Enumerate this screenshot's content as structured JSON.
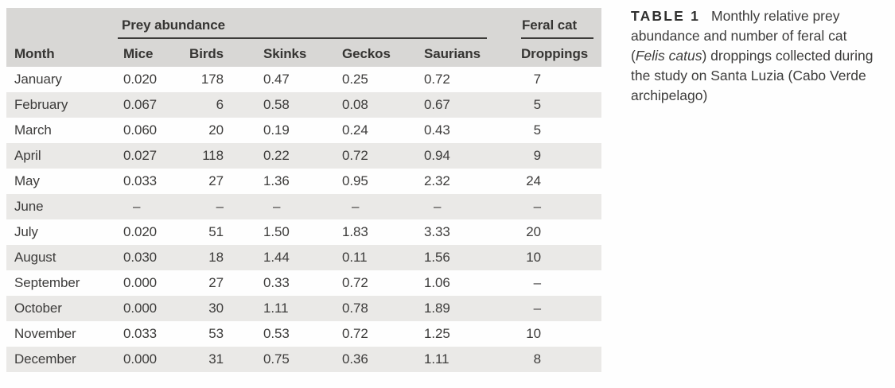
{
  "colors": {
    "header_bg": "#d8d7d5",
    "stripe_bg": "#eae9e7",
    "text": "#3d3c3b",
    "head_text": "#363533",
    "label_text": "#2f2f2e",
    "rule": "#3c3b39"
  },
  "table": {
    "group_headers": {
      "prey": "Prey abundance",
      "feral": "Feral cat"
    },
    "columns": [
      "Month",
      "Mice",
      "Birds",
      "Skinks",
      "Geckos",
      "Saurians",
      "Droppings"
    ],
    "rows": [
      [
        "January",
        "0.020",
        "178",
        "0.47",
        "0.25",
        "0.72",
        "7"
      ],
      [
        "February",
        "0.067",
        "6",
        "0.58",
        "0.08",
        "0.67",
        "5"
      ],
      [
        "March",
        "0.060",
        "20",
        "0.19",
        "0.24",
        "0.43",
        "5"
      ],
      [
        "April",
        "0.027",
        "118",
        "0.22",
        "0.72",
        "0.94",
        "9"
      ],
      [
        "May",
        "0.033",
        "27",
        "1.36",
        "0.95",
        "2.32",
        "24"
      ],
      [
        "June",
        "–",
        "–",
        "–",
        "–",
        "–",
        "–"
      ],
      [
        "July",
        "0.020",
        "51",
        "1.50",
        "1.83",
        "3.33",
        "20"
      ],
      [
        "August",
        "0.030",
        "18",
        "1.44",
        "0.11",
        "1.56",
        "10"
      ],
      [
        "September",
        "0.000",
        "27",
        "0.33",
        "0.72",
        "1.06",
        "–"
      ],
      [
        "October",
        "0.000",
        "30",
        "1.11",
        "0.78",
        "1.89",
        "–"
      ],
      [
        "November",
        "0.033",
        "53",
        "0.53",
        "0.72",
        "1.25",
        "10"
      ],
      [
        "December",
        "0.000",
        "31",
        "0.75",
        "0.36",
        "1.11",
        "8"
      ]
    ]
  },
  "caption": {
    "label": "TABLE 1",
    "lines": [
      [
        {
          "t": "Monthly relative prey"
        }
      ],
      [
        {
          "t": "abundance and number of feral cat"
        }
      ],
      [
        {
          "t": "("
        },
        {
          "t": "Felis catus",
          "i": true
        },
        {
          "t": ") droppings collected during"
        }
      ],
      [
        {
          "t": "the study on Santa Luzia (Cabo Verde"
        }
      ],
      [
        {
          "t": "archipelago)"
        }
      ]
    ]
  }
}
